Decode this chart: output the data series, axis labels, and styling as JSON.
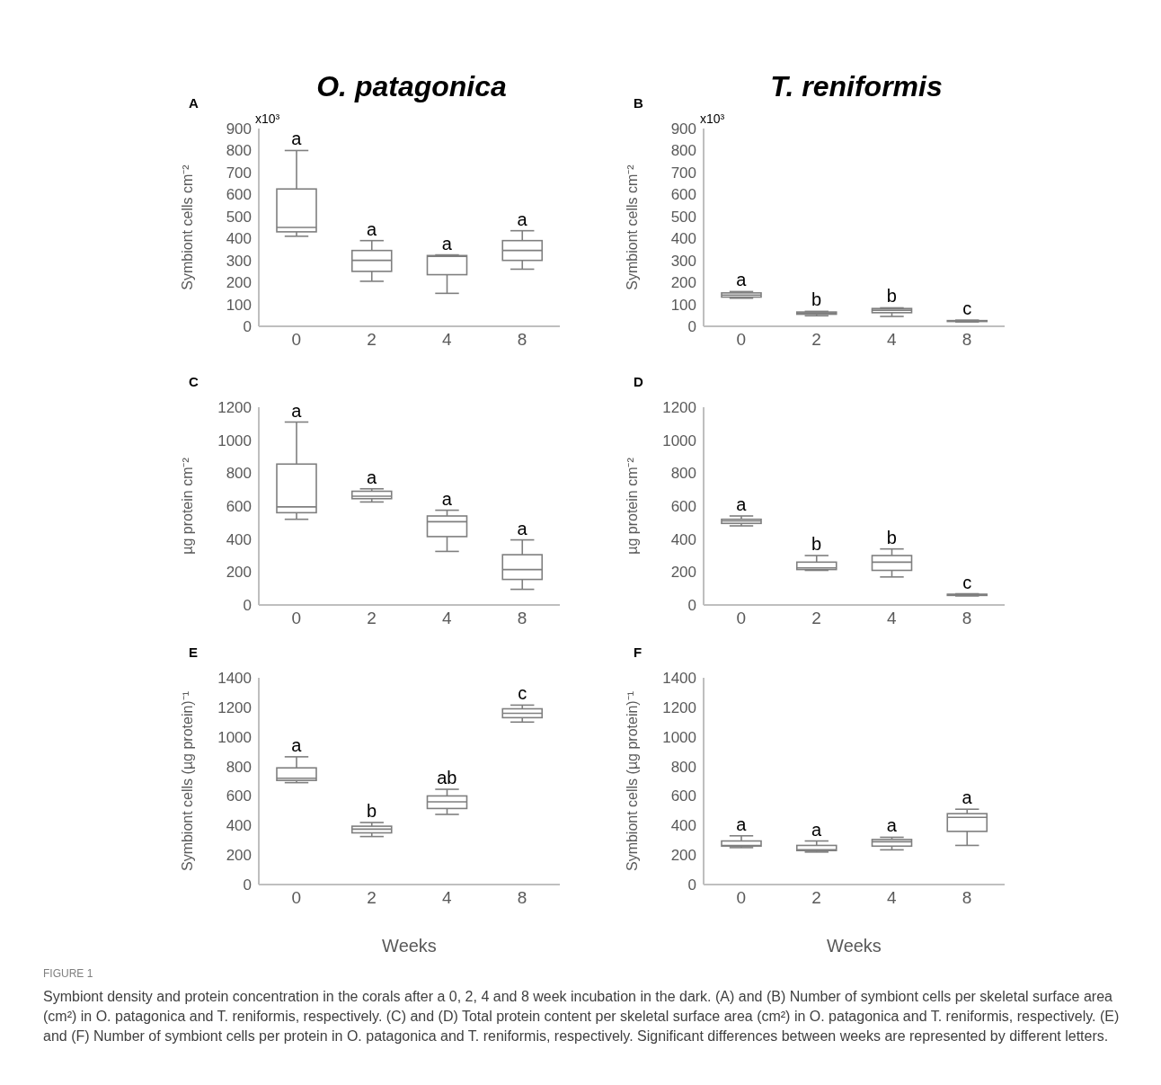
{
  "chart_data": [
    {
      "type": "box",
      "title": "O. patagonica",
      "ylabel": "Symbiont cells cm⁻²",
      "categories": [
        "0",
        "2",
        "4",
        "8"
      ],
      "color": "#7f7f7f",
      "ylim": [
        0,
        900
      ],
      "yticks": [
        0,
        100,
        200,
        300,
        400,
        500,
        600,
        700,
        800,
        900
      ],
      "boxes": [
        {
          "low": 410,
          "q1": 430,
          "median": 450,
          "q3": 625,
          "high": 800
        },
        {
          "low": 205,
          "q1": 250,
          "median": 300,
          "q3": 345,
          "high": 390
        },
        {
          "low": 150,
          "q1": 235,
          "median": 318,
          "q3": 322,
          "high": 325
        },
        {
          "low": 260,
          "q1": 300,
          "median": 345,
          "q3": 390,
          "high": 435
        }
      ],
      "annotations": [
        "A",
        "x10³",
        {
          "text": "a",
          "x": "0",
          "y": 800
        },
        {
          "text": "a",
          "x": "2",
          "y": 390
        },
        {
          "text": "a",
          "x": "4",
          "y": 325
        },
        {
          "text": "a",
          "x": "8",
          "y": 435
        }
      ]
    },
    {
      "type": "box",
      "title": "T. reniformis",
      "ylabel": "Symbiont cells cm⁻²",
      "categories": [
        "0",
        "2",
        "4",
        "8"
      ],
      "color": "#7f7f7f",
      "ylim": [
        0,
        900
      ],
      "yticks": [
        0,
        100,
        200,
        300,
        400,
        500,
        600,
        700,
        800,
        900
      ],
      "boxes": [
        {
          "low": 128,
          "q1": 133,
          "median": 142,
          "q3": 152,
          "high": 158
        },
        {
          "low": 48,
          "q1": 55,
          "median": 60,
          "q3": 65,
          "high": 68
        },
        {
          "low": 45,
          "q1": 62,
          "median": 73,
          "q3": 81,
          "high": 84
        },
        {
          "low": 20,
          "q1": 22,
          "median": 24,
          "q3": 26,
          "high": 28
        }
      ],
      "annotations": [
        "B",
        "x10³",
        {
          "text": "a",
          "x": "0",
          "y": 158
        },
        {
          "text": "b",
          "x": "2",
          "y": 68
        },
        {
          "text": "b",
          "x": "4",
          "y": 84
        },
        {
          "text": "c",
          "x": "8",
          "y": 28
        }
      ]
    },
    {
      "type": "box",
      "ylabel": "µg protein cm⁻²",
      "categories": [
        "0",
        "2",
        "4",
        "8"
      ],
      "color": "#7f7f7f",
      "ylim": [
        0,
        1200
      ],
      "yticks": [
        0,
        200,
        400,
        600,
        800,
        1000,
        1200
      ],
      "boxes": [
        {
          "low": 520,
          "q1": 560,
          "median": 595,
          "q3": 855,
          "high": 1110
        },
        {
          "low": 625,
          "q1": 645,
          "median": 660,
          "q3": 690,
          "high": 705
        },
        {
          "low": 325,
          "q1": 415,
          "median": 505,
          "q3": 540,
          "high": 575
        },
        {
          "low": 95,
          "q1": 155,
          "median": 215,
          "q3": 305,
          "high": 395
        }
      ],
      "annotations": [
        "C",
        {
          "text": "a",
          "x": "0",
          "y": 1110
        },
        {
          "text": "a",
          "x": "2",
          "y": 705
        },
        {
          "text": "a",
          "x": "4",
          "y": 575
        },
        {
          "text": "a",
          "x": "8",
          "y": 395
        }
      ]
    },
    {
      "type": "box",
      "ylabel": "µg protein cm⁻²",
      "categories": [
        "0",
        "2",
        "4",
        "8"
      ],
      "color": "#7f7f7f",
      "ylim": [
        0,
        1200
      ],
      "yticks": [
        0,
        200,
        400,
        600,
        800,
        1000,
        1200
      ],
      "boxes": [
        {
          "low": 480,
          "q1": 495,
          "median": 510,
          "q3": 520,
          "high": 540
        },
        {
          "low": 210,
          "q1": 215,
          "median": 225,
          "q3": 260,
          "high": 300
        },
        {
          "low": 170,
          "q1": 210,
          "median": 260,
          "q3": 300,
          "high": 340
        },
        {
          "low": 55,
          "q1": 58,
          "median": 62,
          "q3": 65,
          "high": 68
        }
      ],
      "annotations": [
        "D",
        {
          "text": "a",
          "x": "0",
          "y": 540
        },
        {
          "text": "b",
          "x": "2",
          "y": 300
        },
        {
          "text": "b",
          "x": "4",
          "y": 340
        },
        {
          "text": "c",
          "x": "8",
          "y": 68
        }
      ]
    },
    {
      "type": "box",
      "xlabel": "Weeks",
      "ylabel": "Symbiont cells (µg protein)⁻¹",
      "categories": [
        "0",
        "2",
        "4",
        "8"
      ],
      "color": "#7f7f7f",
      "ylim": [
        0,
        1400
      ],
      "yticks": [
        0,
        200,
        400,
        600,
        800,
        1000,
        1200,
        1400
      ],
      "boxes": [
        {
          "low": 690,
          "q1": 705,
          "median": 720,
          "q3": 790,
          "high": 865
        },
        {
          "low": 325,
          "q1": 350,
          "median": 375,
          "q3": 395,
          "high": 420
        },
        {
          "low": 475,
          "q1": 515,
          "median": 560,
          "q3": 600,
          "high": 645
        },
        {
          "low": 1100,
          "q1": 1130,
          "median": 1160,
          "q3": 1190,
          "high": 1215
        }
      ],
      "annotations": [
        "E",
        {
          "text": "a",
          "x": "0",
          "y": 865
        },
        {
          "text": "b",
          "x": "2",
          "y": 420
        },
        {
          "text": "ab",
          "x": "4",
          "y": 645
        },
        {
          "text": "c",
          "x": "8",
          "y": 1215
        }
      ]
    },
    {
      "type": "box",
      "xlabel": "Weeks",
      "ylabel": "Symbiont cells (µg protein)⁻¹",
      "categories": [
        "0",
        "2",
        "4",
        "8"
      ],
      "color": "#7f7f7f",
      "ylim": [
        0,
        1400
      ],
      "yticks": [
        0,
        200,
        400,
        600,
        800,
        1000,
        1200,
        1400
      ],
      "boxes": [
        {
          "low": 250,
          "q1": 260,
          "median": 265,
          "q3": 295,
          "high": 330
        },
        {
          "low": 220,
          "q1": 230,
          "median": 235,
          "q3": 265,
          "high": 295
        },
        {
          "low": 235,
          "q1": 260,
          "median": 290,
          "q3": 305,
          "high": 320
        },
        {
          "low": 265,
          "q1": 360,
          "median": 455,
          "q3": 480,
          "high": 510
        }
      ],
      "annotations": [
        "F",
        {
          "text": "a",
          "x": "0",
          "y": 330
        },
        {
          "text": "a",
          "x": "2",
          "y": 295
        },
        {
          "text": "a",
          "x": "4",
          "y": 320
        },
        {
          "text": "a",
          "x": "8",
          "y": 510
        }
      ]
    },
    {
      "type": "other",
      "title": "FIGURE 1",
      "annotations": [
        "Symbiont density and protein concentration in the corals after a 0, 2, 4 and 8 week incubation in the dark. (A) and (B) Number of symbiont cells per skeletal surface area (cm²) in O. patagonica and T. reniformis, respectively. (C) and (D) Total protein content per skeletal surface area (cm²) in O. patagonica and T. reniformis, respectively. (E) and (F) Number of symbiont cells per protein in O. patagonica and T. reniformis, respectively. Significant differences between weeks are represented by different letters."
      ]
    }
  ]
}
